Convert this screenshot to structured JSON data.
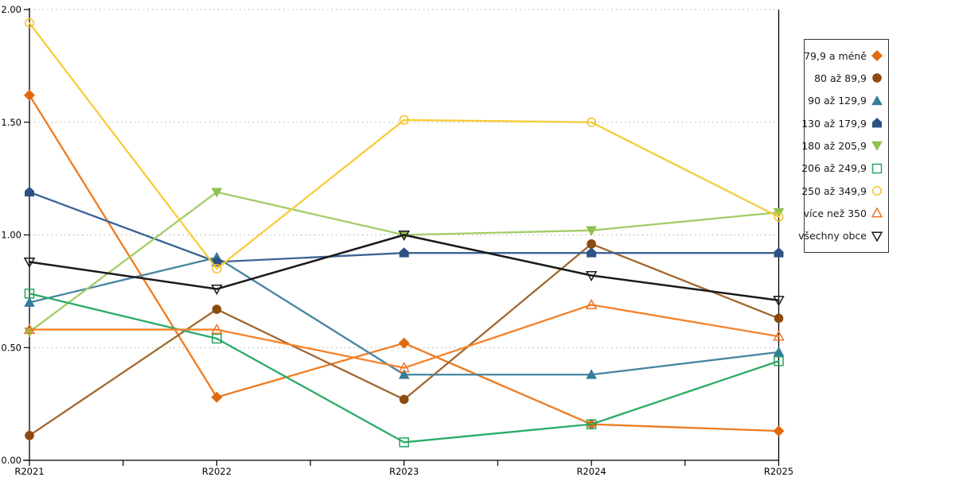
{
  "chart_data": {
    "type": "line",
    "title": "",
    "xlabel": "",
    "ylabel": "",
    "categories": [
      "R2021",
      "R2022",
      "R2023",
      "R2024",
      "R2025"
    ],
    "ylim": [
      0,
      2
    ],
    "ytick_labels": [
      "0.00",
      "0.50",
      "1.00",
      "1.50",
      "2.00"
    ],
    "ytick_values": [
      0,
      0.5,
      1.0,
      1.5,
      2.0
    ],
    "grid": "horizontal-dotted",
    "grid_color": "#b0b0b0",
    "axis_color": "#000000",
    "legend_position": "right",
    "series": [
      {
        "name": "79,9 a méně",
        "marker": "diamond",
        "filled": true,
        "color": "#e26a0d",
        "line_color": "#ee7b20",
        "values": [
          1.62,
          0.28,
          0.52,
          0.16,
          0.13
        ]
      },
      {
        "name": "80 až 89,9",
        "marker": "circle",
        "filled": true,
        "color": "#8c4a10",
        "line_color": "#a2672f",
        "values": [
          0.11,
          0.67,
          0.27,
          0.96,
          0.63
        ]
      },
      {
        "name": "90 až 129,9",
        "marker": "triangle-up",
        "filled": true,
        "color": "#357e99",
        "line_color": "#4585a0",
        "values": [
          0.7,
          0.9,
          0.38,
          0.38,
          0.48
        ]
      },
      {
        "name": "130 až 179,9",
        "marker": "pentagon",
        "filled": true,
        "color": "#2c5384",
        "line_color": "#3a6496",
        "values": [
          1.19,
          0.88,
          0.92,
          0.92,
          0.92
        ]
      },
      {
        "name": "180 až 205,9",
        "marker": "triangle-down",
        "filled": true,
        "color": "#8fc24f",
        "line_color": "#a3cc66",
        "values": [
          0.57,
          1.19,
          1.0,
          1.02,
          1.1
        ]
      },
      {
        "name": "206 až 249,9",
        "marker": "square",
        "filled": false,
        "color": "#25a55f",
        "line_color": "#2bab67",
        "values": [
          0.74,
          0.54,
          0.08,
          0.16,
          0.44
        ]
      },
      {
        "name": "250 až 349,9",
        "marker": "circle",
        "filled": false,
        "color": "#f2c22d",
        "line_color": "#f8cb3a",
        "values": [
          1.94,
          0.85,
          1.51,
          1.5,
          1.08
        ]
      },
      {
        "name": "více než 350",
        "marker": "triangle-up",
        "filled": false,
        "color": "#ee7426",
        "line_color": "#f5832b",
        "values": [
          0.58,
          0.58,
          0.41,
          0.69,
          0.55
        ]
      },
      {
        "name": "všechny obce",
        "marker": "triangle-down",
        "filled": false,
        "color": "#1a1a1a",
        "line_color": "#1a1a1a",
        "values": [
          0.88,
          0.76,
          1.0,
          0.82,
          0.71
        ]
      }
    ]
  }
}
